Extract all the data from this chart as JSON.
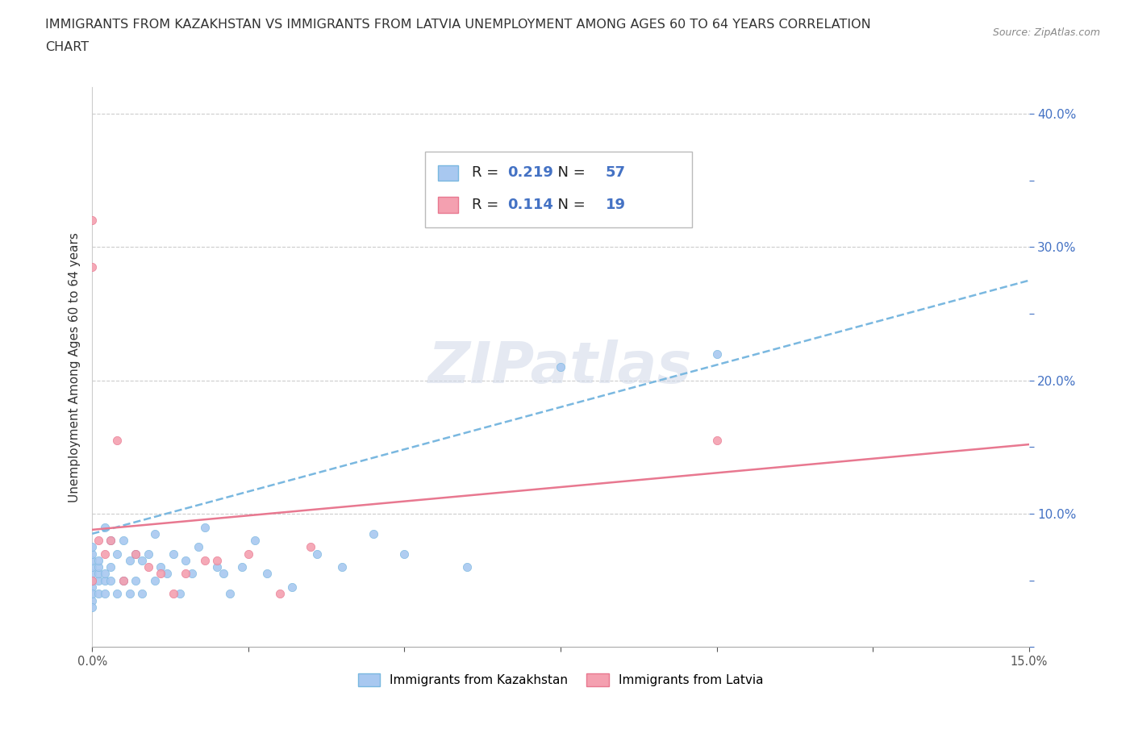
{
  "title_line1": "IMMIGRANTS FROM KAZAKHSTAN VS IMMIGRANTS FROM LATVIA UNEMPLOYMENT AMONG AGES 60 TO 64 YEARS CORRELATION",
  "title_line2": "CHART",
  "source_text": "Source: ZipAtlas.com",
  "ylabel": "Unemployment Among Ages 60 to 64 years",
  "xlim": [
    0.0,
    0.15
  ],
  "ylim": [
    0.0,
    0.42
  ],
  "kazakhstan_color": "#a8c8f0",
  "latvia_color": "#f4a0b0",
  "trendline_kazakhstan_color": "#7ab8e0",
  "trendline_latvia_color": "#e87890",
  "watermark_text": "ZIPatlas",
  "legend_r_kazakhstan": "0.219",
  "legend_n_kazakhstan": "57",
  "legend_r_latvia": "0.114",
  "legend_n_latvia": "19",
  "kaz_trend_x": [
    0.0,
    0.15
  ],
  "kaz_trend_y": [
    0.085,
    0.275
  ],
  "lat_trend_x": [
    0.0,
    0.15
  ],
  "lat_trend_y": [
    0.088,
    0.152
  ],
  "kazakhstan_x": [
    0.0,
    0.0,
    0.0,
    0.0,
    0.0,
    0.0,
    0.0,
    0.0,
    0.0,
    0.0,
    0.001,
    0.001,
    0.001,
    0.001,
    0.001,
    0.002,
    0.002,
    0.002,
    0.002,
    0.003,
    0.003,
    0.003,
    0.004,
    0.004,
    0.005,
    0.005,
    0.006,
    0.006,
    0.007,
    0.007,
    0.008,
    0.008,
    0.009,
    0.01,
    0.01,
    0.011,
    0.012,
    0.013,
    0.014,
    0.015,
    0.016,
    0.017,
    0.018,
    0.02,
    0.021,
    0.022,
    0.024,
    0.026,
    0.028,
    0.032,
    0.036,
    0.04,
    0.045,
    0.05,
    0.06,
    0.075,
    0.1
  ],
  "kazakhstan_y": [
    0.045,
    0.05,
    0.055,
    0.06,
    0.065,
    0.07,
    0.075,
    0.035,
    0.04,
    0.03,
    0.05,
    0.055,
    0.06,
    0.065,
    0.04,
    0.04,
    0.05,
    0.055,
    0.09,
    0.05,
    0.06,
    0.08,
    0.04,
    0.07,
    0.05,
    0.08,
    0.04,
    0.065,
    0.05,
    0.07,
    0.04,
    0.065,
    0.07,
    0.05,
    0.085,
    0.06,
    0.055,
    0.07,
    0.04,
    0.065,
    0.055,
    0.075,
    0.09,
    0.06,
    0.055,
    0.04,
    0.06,
    0.08,
    0.055,
    0.045,
    0.07,
    0.06,
    0.085,
    0.07,
    0.06,
    0.21,
    0.22
  ],
  "latvia_x": [
    0.0,
    0.0,
    0.0,
    0.001,
    0.002,
    0.003,
    0.004,
    0.005,
    0.007,
    0.009,
    0.011,
    0.013,
    0.015,
    0.018,
    0.02,
    0.025,
    0.03,
    0.035,
    0.1
  ],
  "latvia_y": [
    0.05,
    0.32,
    0.285,
    0.08,
    0.07,
    0.08,
    0.155,
    0.05,
    0.07,
    0.06,
    0.055,
    0.04,
    0.055,
    0.065,
    0.065,
    0.07,
    0.04,
    0.075,
    0.155
  ]
}
